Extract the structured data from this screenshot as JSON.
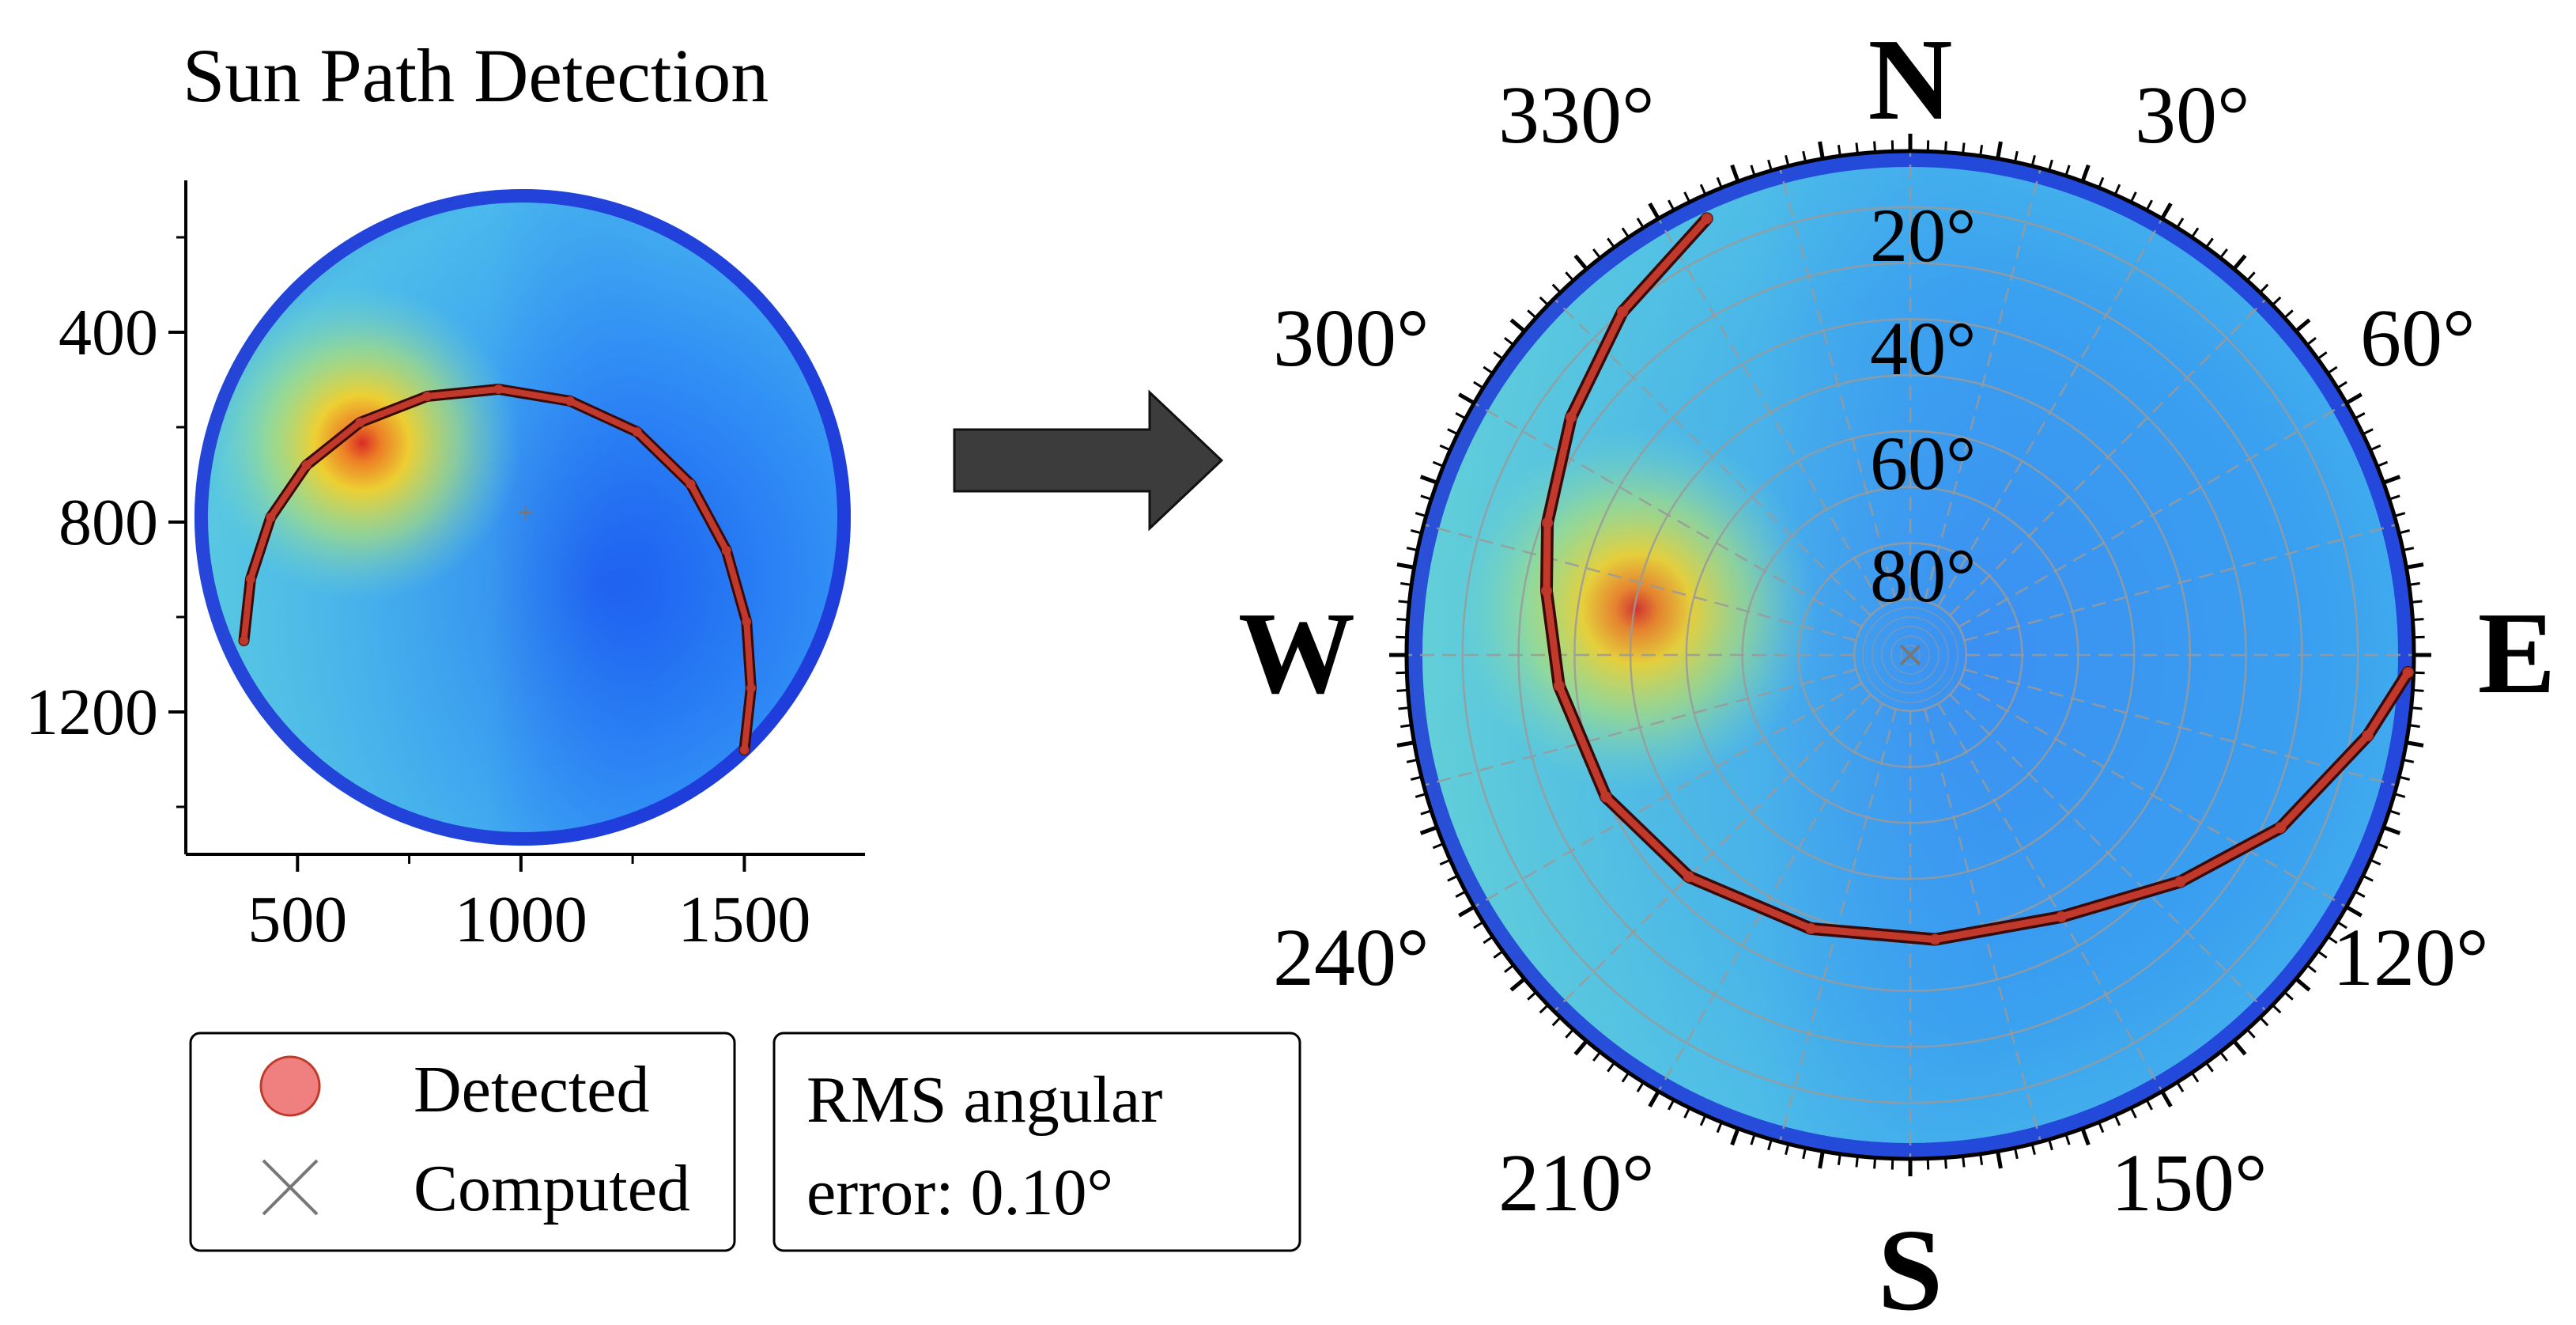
{
  "chart_data": [
    {
      "type": "scatter",
      "title": "Sun Path Detection",
      "xlabel": "",
      "ylabel": "",
      "x_ticks": [
        "500",
        "1000",
        "1500"
      ],
      "y_ticks": [
        "400",
        "800",
        "1200"
      ],
      "xlim": [
        250,
        1770
      ],
      "ylim": [
        1500,
        80
      ],
      "y_inverted": true,
      "image_center": {
        "x": 1010,
        "y": 780
      },
      "series": [
        {
          "name": "Detected",
          "points": [
            {
              "x": 380,
              "y": 1050
            },
            {
              "x": 395,
              "y": 920
            },
            {
              "x": 440,
              "y": 790
            },
            {
              "x": 520,
              "y": 680
            },
            {
              "x": 640,
              "y": 590
            },
            {
              "x": 790,
              "y": 535
            },
            {
              "x": 950,
              "y": 520
            },
            {
              "x": 1110,
              "y": 545
            },
            {
              "x": 1260,
              "y": 610
            },
            {
              "x": 1380,
              "y": 720
            },
            {
              "x": 1460,
              "y": 860
            },
            {
              "x": 1505,
              "y": 1010
            },
            {
              "x": 1515,
              "y": 1150
            },
            {
              "x": 1500,
              "y": 1280
            }
          ]
        }
      ]
    },
    {
      "type": "polar",
      "compass": {
        "n": "N",
        "e": "E",
        "s": "S",
        "w": "W"
      },
      "azimuth_labels": [
        "30°",
        "60°",
        "120°",
        "150°",
        "210°",
        "240°",
        "300°",
        "330°"
      ],
      "elevation_labels": [
        "20°",
        "40°",
        "60°",
        "80°"
      ],
      "series": [
        {
          "name": "Detected",
          "points_az_el": [
            [
              335,
              4
            ],
            [
              320,
              10
            ],
            [
              305,
              16
            ],
            [
              290,
              21
            ],
            [
              280,
              24
            ],
            [
              265,
              27
            ],
            [
              245,
              30
            ],
            [
              225,
              34
            ],
            [
              200,
              38
            ],
            [
              175,
              39
            ],
            [
              150,
              36
            ],
            [
              130,
              27
            ],
            [
              115,
              17
            ],
            [
              100,
              7
            ],
            [
              92,
              1
            ]
          ]
        }
      ]
    }
  ],
  "legend": {
    "detected_label": "Detected",
    "computed_label": "Computed"
  },
  "error_box": {
    "line1": "RMS angular",
    "line2": "error: 0.10°"
  },
  "colors": {
    "detected": "#c0392b",
    "detected_legend_fill": "#f08080",
    "computed": "#777777",
    "arrow": "#3c3c3c",
    "sky_low": "#1e3ee0",
    "sky_mid": "#2f8cf5",
    "sky_high": "#56c6e8",
    "sun_glow": "#ffd21e"
  }
}
